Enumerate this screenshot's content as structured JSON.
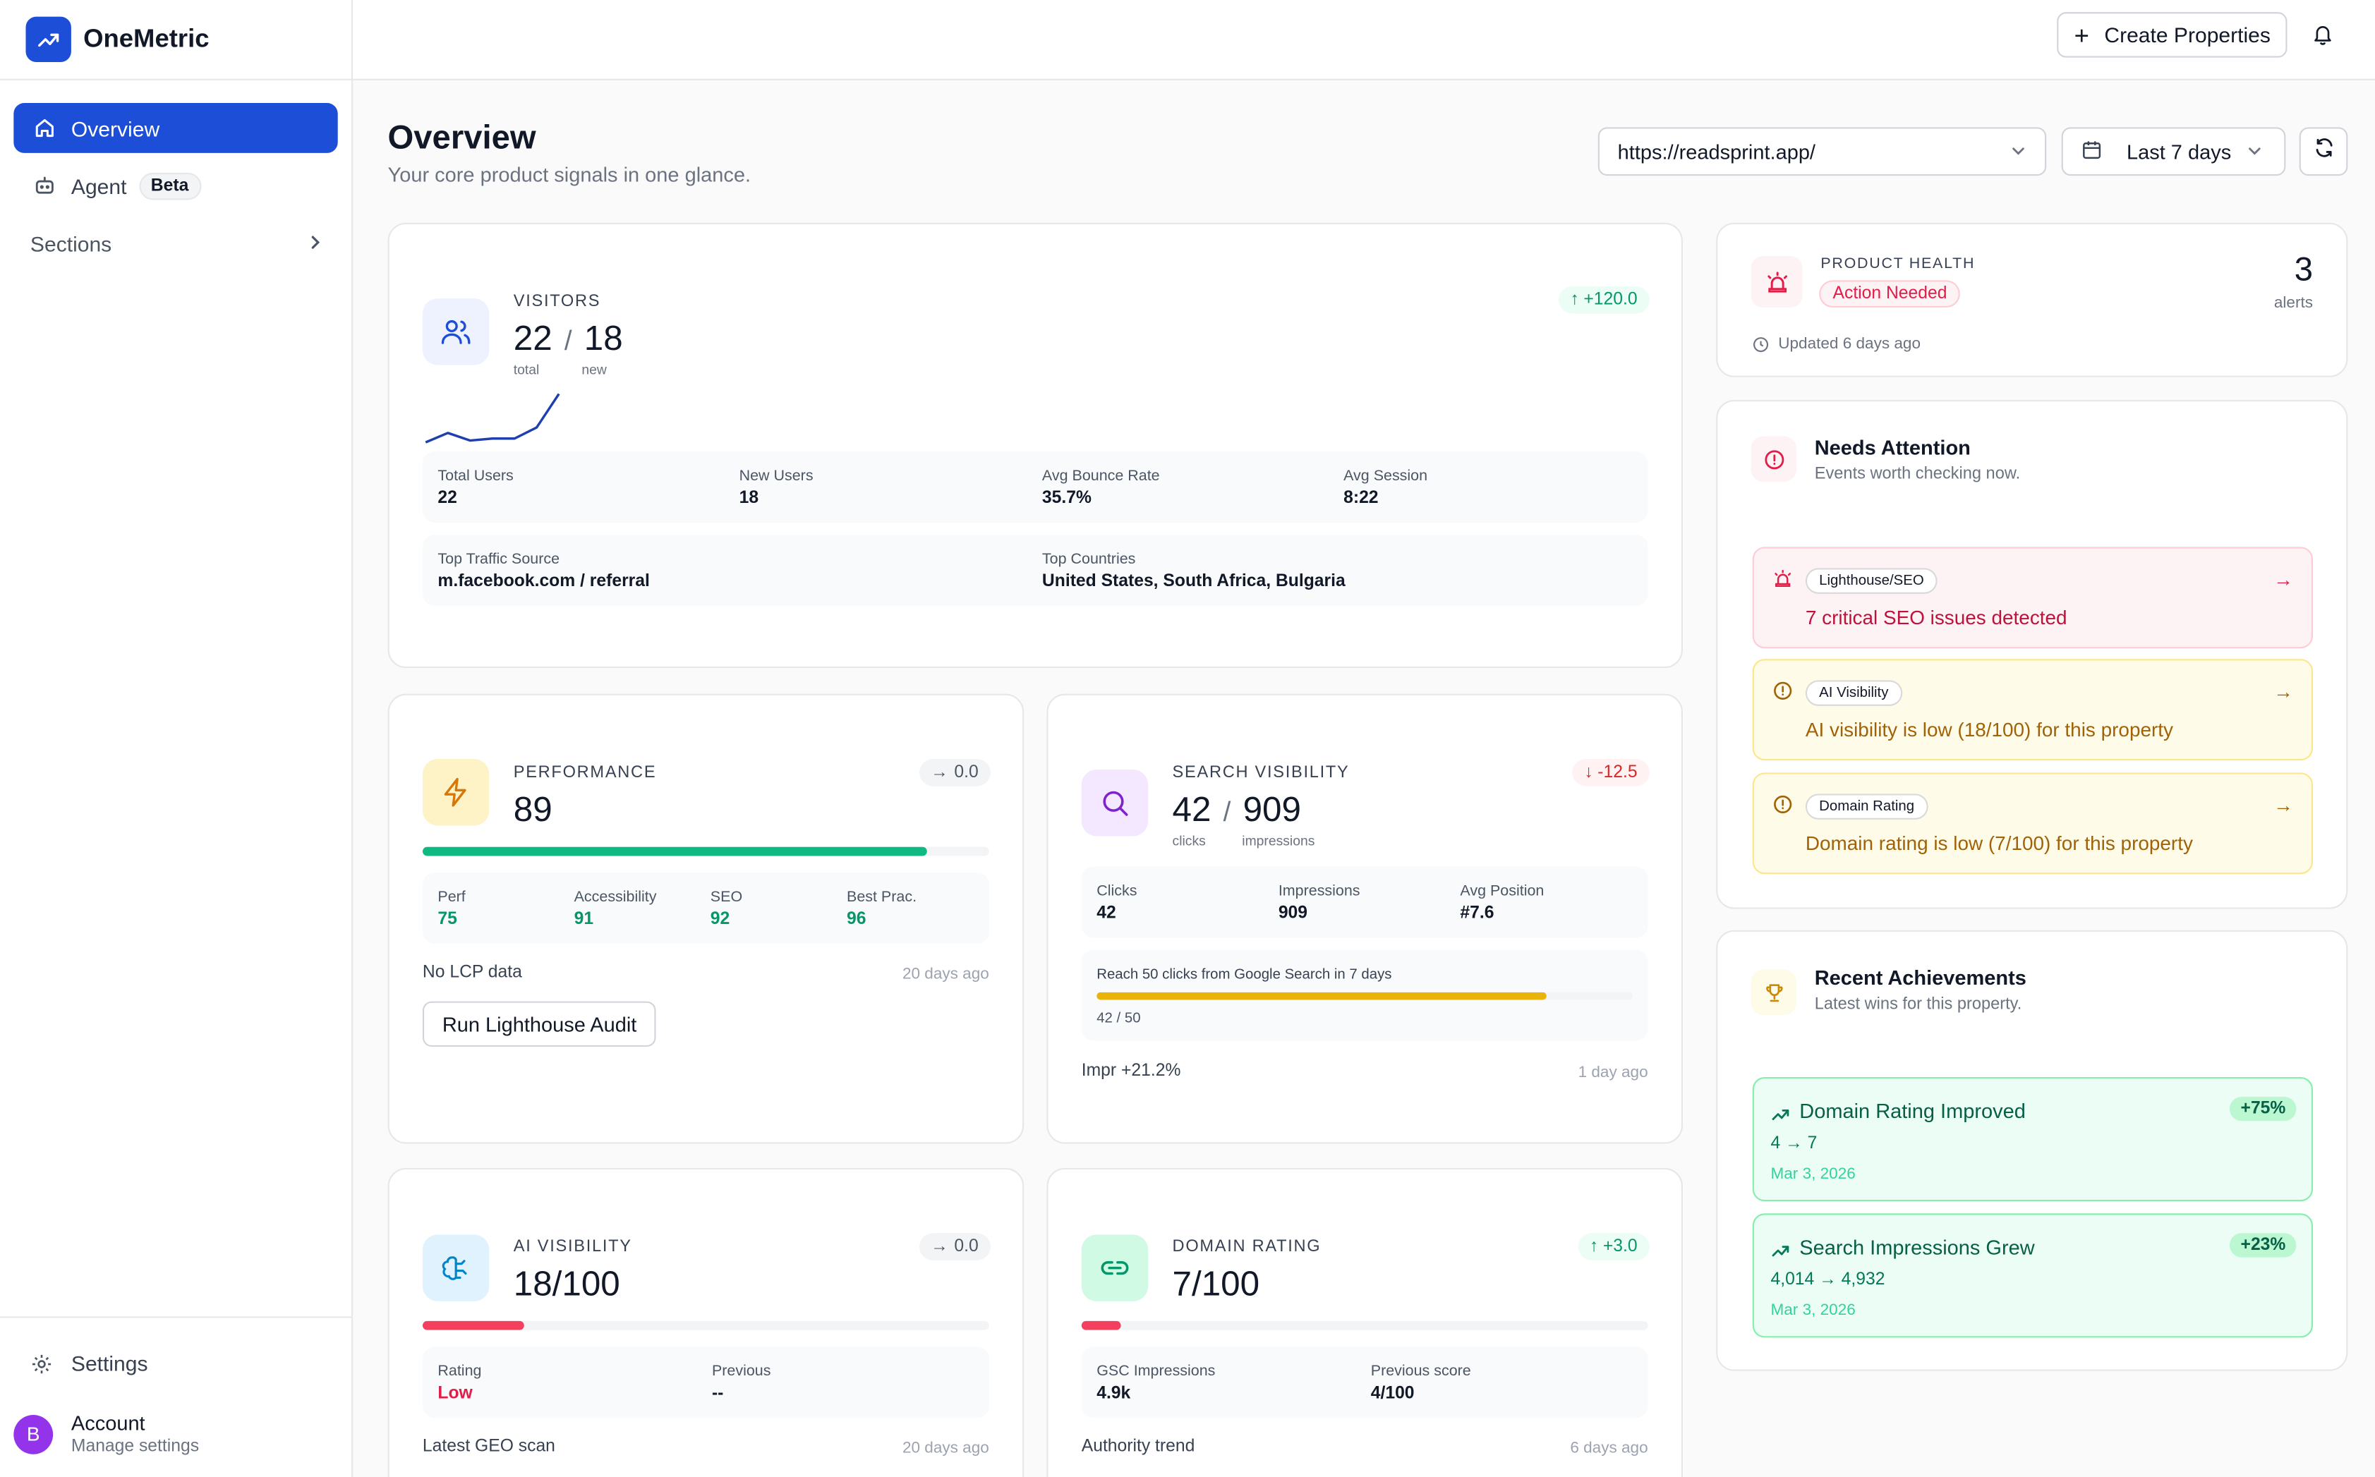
{
  "app": {
    "name": "OneMetric"
  },
  "sidebar": {
    "items": [
      {
        "label": "Overview"
      },
      {
        "label": "Agent",
        "badge": "Beta"
      }
    ],
    "sections_label": "Sections",
    "settings_label": "Settings",
    "account": {
      "initial": "B",
      "name": "Account",
      "sub": "Manage settings"
    }
  },
  "topbar": {
    "create_label": "Create Properties"
  },
  "page": {
    "title": "Overview",
    "subtitle": "Your core product signals in one glance."
  },
  "filters": {
    "url": "https://readsprint.app/",
    "range": "Last 7 days"
  },
  "visitors": {
    "label": "VISITORS",
    "total": "22",
    "total_caption": "total",
    "new": "18",
    "new_caption": "new",
    "delta": "+120.0",
    "sparkline": [
      4,
      9,
      5,
      6,
      6,
      12,
      30
    ],
    "stats": [
      {
        "k": "Total Users",
        "v": "22"
      },
      {
        "k": "New Users",
        "v": "18"
      },
      {
        "k": "Avg Bounce Rate",
        "v": "35.7%"
      },
      {
        "k": "Avg Session",
        "v": "8:22"
      }
    ],
    "traffic_source_label": "Top Traffic Source",
    "traffic_source": "m.facebook.com / referral",
    "countries_label": "Top Countries",
    "countries": "United States, South Africa, Bulgaria"
  },
  "performance": {
    "label": "PERFORMANCE",
    "score": "89",
    "progress": 0.89,
    "delta": "0.0",
    "stats": [
      {
        "k": "Perf",
        "v": "75"
      },
      {
        "k": "Accessibility",
        "v": "91"
      },
      {
        "k": "SEO",
        "v": "92"
      },
      {
        "k": "Best Prac.",
        "v": "96"
      }
    ],
    "note": "No LCP data",
    "updated": "20 days ago",
    "button": "Run Lighthouse Audit"
  },
  "search": {
    "label": "SEARCH VISIBILITY",
    "clicks": "42",
    "clicks_caption": "clicks",
    "impressions": "909",
    "impressions_caption": "impressions",
    "delta": "-12.5",
    "stats": [
      {
        "k": "Clicks",
        "v": "42"
      },
      {
        "k": "Impressions",
        "v": "909"
      },
      {
        "k": "Avg Position",
        "v": "#7.6"
      }
    ],
    "goal_text": "Reach 50 clicks from Google Search in 7 days",
    "goal_progress": 0.84,
    "goal_value": "42 / 50",
    "note": "Impr +21.2%",
    "updated": "1 day ago"
  },
  "ai": {
    "label": "AI VISIBILITY",
    "score": "18/100",
    "progress": 0.18,
    "delta": "0.0",
    "rating_label": "Rating",
    "rating": "Low",
    "previous_label": "Previous",
    "previous": "--",
    "note": "Latest GEO scan",
    "updated": "20 days ago"
  },
  "domain": {
    "label": "DOMAIN RATING",
    "score": "7/100",
    "progress": 0.07,
    "delta": "+3.0",
    "gsc_label": "GSC Impressions",
    "gsc": "4.9k",
    "prev_label": "Previous score",
    "prev": "4/100",
    "note": "Authority trend",
    "updated": "6 days ago"
  },
  "health": {
    "label": "PRODUCT HEALTH",
    "status": "Action Needed",
    "alerts": "3",
    "alerts_label": "alerts",
    "updated": "Updated 6 days ago"
  },
  "attention": {
    "title": "Needs Attention",
    "subtitle": "Events worth checking now.",
    "items": [
      {
        "chip": "Lighthouse/SEO",
        "msg": "7 critical SEO issues detected"
      },
      {
        "chip": "AI Visibility",
        "msg": "AI visibility is low (18/100) for this property"
      },
      {
        "chip": "Domain Rating",
        "msg": "Domain rating is low (7/100) for this property"
      }
    ]
  },
  "achievements": {
    "title": "Recent Achievements",
    "subtitle": "Latest wins for this property.",
    "items": [
      {
        "title": "Domain Rating Improved",
        "pct": "+75%",
        "value": "4 → 7",
        "date": "Mar 3, 2026"
      },
      {
        "title": "Search Impressions Grew",
        "pct": "+23%",
        "value": "4,014 → 4,932",
        "date": "Mar 3, 2026"
      }
    ]
  },
  "colors": {
    "brand": "#1d4ed8",
    "green": "#10b981",
    "amber": "#eab308",
    "rose": "#f43f5e",
    "alert_red_bg": "#fdf2f4",
    "alert_yellow_bg": "#fefce8"
  }
}
